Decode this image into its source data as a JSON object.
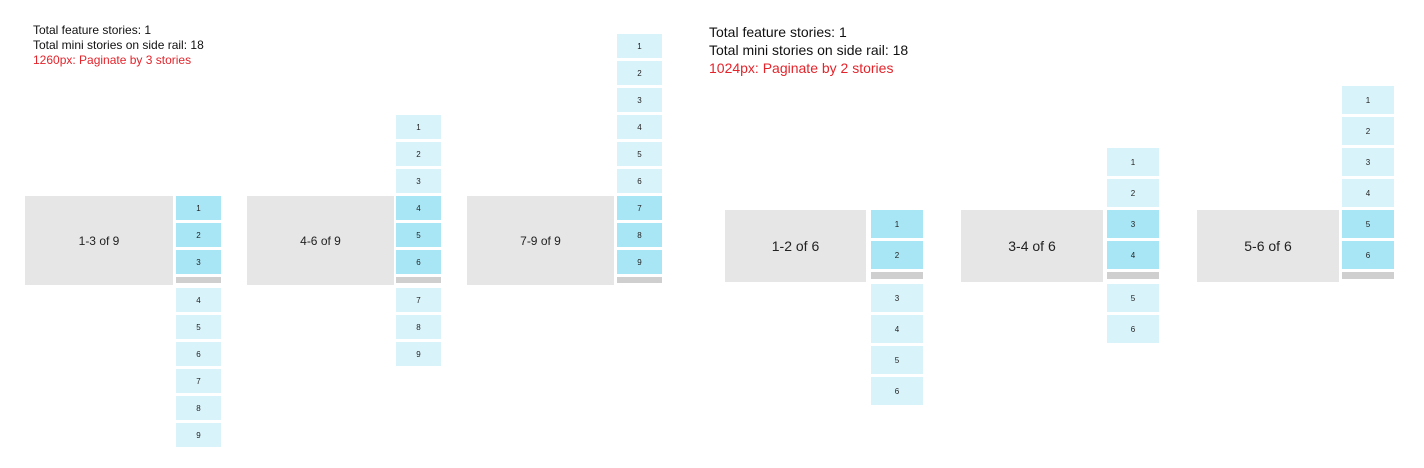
{
  "left_header": {
    "line1": "Total feature stories: 1",
    "line2": "Total mini stories on side rail: 18",
    "line3": "1260px: Paginate by 3 stories"
  },
  "right_header": {
    "line1": "Total feature stories: 1",
    "line2": "Total mini stories on side rail: 18",
    "line3": "1024px: Paginate by 2 stories"
  },
  "colors": {
    "feature_bg": "#e6e6e6",
    "tile_inactive": "#d9f3fb",
    "tile_active": "#a8e6f6",
    "separator": "#cfcfcf",
    "highlight_text": "#e3242b"
  },
  "panels": [
    {
      "label": "1-3 of 9",
      "stories": [
        "1",
        "2",
        "3",
        "4",
        "5",
        "6",
        "7",
        "8",
        "9"
      ],
      "active": [
        "1",
        "2",
        "3"
      ]
    },
    {
      "label": "4-6 of 9",
      "stories": [
        "1",
        "2",
        "3",
        "4",
        "5",
        "6",
        "7",
        "8",
        "9"
      ],
      "active": [
        "4",
        "5",
        "6"
      ]
    },
    {
      "label": "7-9 of 9",
      "stories": [
        "1",
        "2",
        "3",
        "4",
        "5",
        "6",
        "7",
        "8",
        "9"
      ],
      "active": [
        "7",
        "8",
        "9"
      ]
    },
    {
      "label": "1-2 of 6",
      "stories": [
        "1",
        "2",
        "3",
        "4",
        "5",
        "6"
      ],
      "active": [
        "1",
        "2"
      ]
    },
    {
      "label": "3-4 of 6",
      "stories": [
        "1",
        "2",
        "3",
        "4",
        "5",
        "6"
      ],
      "active": [
        "3",
        "4"
      ]
    },
    {
      "label": "5-6 of 6",
      "stories": [
        "1",
        "2",
        "3",
        "4",
        "5",
        "6"
      ],
      "active": [
        "5",
        "6"
      ]
    }
  ]
}
